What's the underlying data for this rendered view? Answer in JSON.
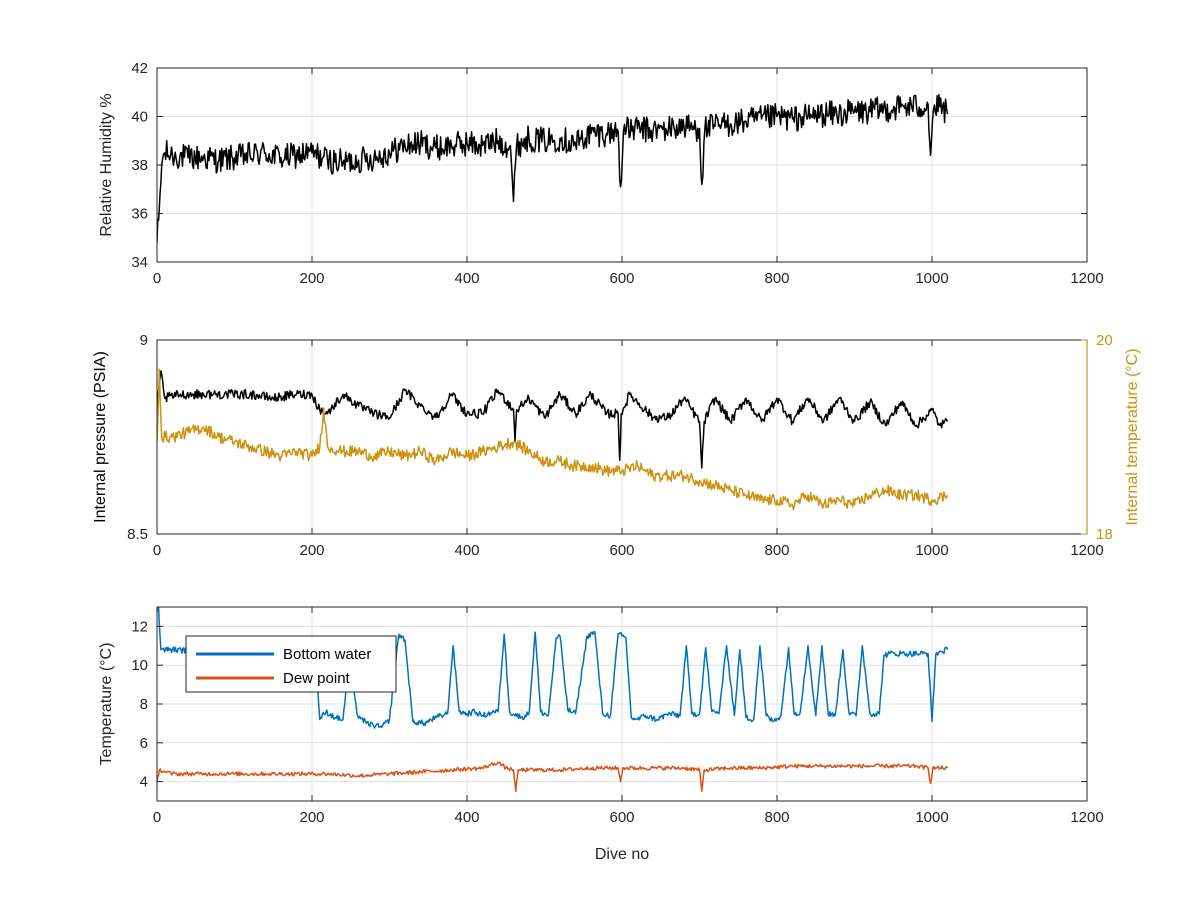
{
  "chart_data": [
    {
      "type": "line",
      "panel": "top",
      "xlabel": "",
      "ylabel": "Relative Humidity %",
      "xlim": [
        0,
        1200
      ],
      "ylim": [
        34,
        42
      ],
      "xticks": [
        0,
        200,
        400,
        600,
        800,
        1000,
        1200
      ],
      "yticks": [
        34,
        36,
        38,
        40,
        42
      ],
      "grid": true,
      "series": [
        {
          "name": "",
          "color": "#000000",
          "noise": 0.55,
          "x": [
            0,
            3,
            6,
            10,
            20,
            40,
            60,
            80,
            100,
            120,
            140,
            160,
            180,
            200,
            220,
            240,
            260,
            280,
            300,
            320,
            340,
            360,
            380,
            400,
            420,
            440,
            456,
            460,
            464,
            480,
            500,
            520,
            540,
            560,
            580,
            595,
            598,
            602,
            620,
            640,
            660,
            680,
            700,
            703,
            707,
            720,
            740,
            760,
            780,
            800,
            820,
            840,
            860,
            880,
            900,
            920,
            940,
            960,
            980,
            995,
            998,
            1002,
            1010,
            1020
          ],
          "y": [
            34.8,
            36.2,
            38.0,
            38.5,
            38.4,
            38.3,
            38.3,
            38.2,
            38.3,
            38.4,
            38.5,
            38.3,
            38.4,
            38.5,
            38.2,
            38.1,
            38.2,
            38.3,
            38.5,
            38.8,
            38.9,
            38.7,
            38.8,
            38.9,
            38.8,
            39.0,
            38.8,
            36.5,
            38.8,
            39.1,
            39.0,
            39.1,
            38.9,
            39.3,
            39.3,
            39.4,
            37.1,
            39.4,
            39.5,
            39.4,
            39.5,
            39.6,
            39.5,
            37.2,
            39.5,
            39.6,
            39.7,
            39.8,
            39.9,
            40.0,
            39.9,
            40.0,
            40.1,
            40.1,
            40.2,
            40.2,
            40.3,
            40.4,
            40.4,
            40.5,
            38.4,
            40.3,
            40.4,
            40.1
          ]
        }
      ]
    },
    {
      "type": "line",
      "panel": "middle",
      "xlabel": "",
      "ylabel": "Internal pressure (PSIA)",
      "ylabel_right": "Internal temperature (°C)",
      "xlim": [
        0,
        1200
      ],
      "ylim": [
        8.5,
        9
      ],
      "ylim_right": [
        18,
        20
      ],
      "xticks": [
        0,
        200,
        400,
        600,
        800,
        1000,
        1200
      ],
      "yticks": [
        8.5,
        9
      ],
      "yticks_right": [
        18,
        20
      ],
      "grid": true,
      "series": [
        {
          "name": "",
          "axis": "left",
          "color": "#000000",
          "noise": 0.012,
          "x": [
            0,
            5,
            10,
            30,
            60,
            90,
            120,
            150,
            180,
            200,
            210,
            220,
            240,
            260,
            280,
            300,
            320,
            340,
            360,
            380,
            400,
            420,
            440,
            460,
            462,
            464,
            480,
            500,
            520,
            540,
            560,
            580,
            595,
            597,
            599,
            610,
            640,
            660,
            680,
            700,
            703,
            706,
            720,
            740,
            760,
            780,
            800,
            820,
            840,
            860,
            880,
            900,
            920,
            940,
            960,
            980,
            1000,
            1010,
            1020
          ],
          "y": [
            8.82,
            8.92,
            8.85,
            8.86,
            8.86,
            8.86,
            8.86,
            8.85,
            8.86,
            8.86,
            8.82,
            8.81,
            8.86,
            8.83,
            8.81,
            8.8,
            8.87,
            8.83,
            8.8,
            8.86,
            8.81,
            8.81,
            8.87,
            8.82,
            8.74,
            8.82,
            8.85,
            8.8,
            8.86,
            8.81,
            8.86,
            8.81,
            8.81,
            8.69,
            8.81,
            8.86,
            8.8,
            8.8,
            8.85,
            8.79,
            8.67,
            8.79,
            8.85,
            8.79,
            8.85,
            8.79,
            8.85,
            8.79,
            8.85,
            8.79,
            8.85,
            8.79,
            8.84,
            8.78,
            8.84,
            8.78,
            8.82,
            8.78,
            8.79
          ]
        },
        {
          "name": "",
          "axis": "right",
          "color": "#cc9314",
          "noise": 0.06,
          "x": [
            0,
            3,
            6,
            20,
            40,
            60,
            80,
            100,
            120,
            140,
            160,
            180,
            200,
            210,
            215,
            220,
            240,
            260,
            280,
            300,
            320,
            340,
            360,
            380,
            400,
            420,
            440,
            460,
            480,
            500,
            520,
            540,
            560,
            580,
            600,
            620,
            640,
            660,
            680,
            700,
            720,
            740,
            760,
            780,
            800,
            820,
            840,
            860,
            880,
            900,
            920,
            940,
            960,
            980,
            1000,
            1020
          ],
          "y": [
            18.95,
            19.7,
            19.0,
            19.0,
            19.05,
            19.1,
            19.0,
            18.95,
            18.9,
            18.85,
            18.8,
            18.85,
            18.8,
            18.9,
            19.3,
            18.9,
            18.85,
            18.85,
            18.8,
            18.85,
            18.8,
            18.85,
            18.75,
            18.85,
            18.8,
            18.85,
            18.9,
            18.95,
            18.85,
            18.75,
            18.75,
            18.7,
            18.7,
            18.65,
            18.65,
            18.7,
            18.6,
            18.6,
            18.6,
            18.55,
            18.5,
            18.45,
            18.4,
            18.35,
            18.35,
            18.3,
            18.4,
            18.3,
            18.35,
            18.3,
            18.4,
            18.45,
            18.4,
            18.4,
            18.35,
            18.4
          ]
        }
      ]
    },
    {
      "type": "line",
      "panel": "bottom",
      "xlabel": "Dive no",
      "ylabel": "Temperature (°C)",
      "xlim": [
        0,
        1200
      ],
      "ylim": [
        3,
        13
      ],
      "xticks": [
        0,
        200,
        400,
        600,
        800,
        1000,
        1200
      ],
      "yticks": [
        4,
        6,
        8,
        10,
        12
      ],
      "grid": true,
      "legend": "top-left",
      "series": [
        {
          "name": "Bottom water",
          "color": "#0072bd",
          "noise": 0.15,
          "x": [
            0,
            2,
            5,
            20,
            60,
            100,
            140,
            180,
            205,
            210,
            218,
            230,
            240,
            248,
            258,
            270,
            290,
            300,
            312,
            320,
            330,
            345,
            360,
            375,
            382,
            390,
            400,
            410,
            420,
            435,
            440,
            448,
            455,
            470,
            480,
            488,
            495,
            505,
            515,
            520,
            530,
            540,
            555,
            565,
            575,
            585,
            595,
            605,
            612,
            620,
            630,
            645,
            660,
            675,
            683,
            690,
            700,
            708,
            716,
            725,
            735,
            745,
            752,
            760,
            770,
            778,
            786,
            795,
            805,
            815,
            822,
            830,
            840,
            850,
            858,
            866,
            875,
            885,
            893,
            902,
            910,
            920,
            932,
            938,
            945,
            960,
            980,
            995,
            1000,
            1005,
            1012,
            1020
          ],
          "y": [
            12.8,
            13.0,
            10.8,
            10.8,
            10.7,
            10.6,
            10.6,
            10.5,
            10.4,
            7.2,
            7.6,
            7.3,
            7.2,
            10.3,
            7.5,
            7.0,
            6.8,
            7.2,
            11.6,
            11.3,
            7.1,
            7.0,
            7.3,
            7.5,
            11.0,
            7.6,
            7.5,
            7.6,
            7.4,
            7.6,
            7.6,
            11.6,
            7.6,
            7.3,
            7.5,
            11.7,
            7.6,
            7.4,
            11.4,
            11.5,
            7.7,
            7.5,
            11.5,
            11.7,
            7.5,
            7.4,
            11.6,
            11.4,
            7.3,
            7.2,
            7.4,
            7.2,
            7.5,
            7.4,
            11.0,
            7.5,
            7.5,
            10.9,
            7.6,
            7.5,
            11.0,
            7.4,
            10.8,
            7.3,
            7.2,
            11.0,
            7.4,
            7.1,
            7.4,
            10.9,
            7.5,
            7.6,
            11.0,
            7.4,
            11.0,
            7.5,
            7.4,
            10.8,
            7.5,
            7.4,
            11.0,
            7.5,
            7.5,
            10.5,
            10.6,
            10.6,
            10.6,
            10.6,
            7.1,
            10.6,
            10.7,
            10.8
          ]
        },
        {
          "name": "Dew point",
          "color": "#d95319",
          "noise": 0.1,
          "x": [
            0,
            3,
            20,
            60,
            100,
            140,
            180,
            220,
            260,
            300,
            340,
            380,
            420,
            440,
            450,
            460,
            463,
            466,
            480,
            520,
            560,
            595,
            598,
            601,
            640,
            680,
            700,
            703,
            706,
            740,
            780,
            820,
            860,
            900,
            940,
            980,
            995,
            998,
            1001,
            1020
          ],
          "y": [
            4.0,
            4.6,
            4.4,
            4.4,
            4.4,
            4.4,
            4.4,
            4.4,
            4.3,
            4.4,
            4.5,
            4.6,
            4.7,
            5.0,
            4.7,
            4.6,
            3.5,
            4.6,
            4.6,
            4.6,
            4.7,
            4.7,
            4.0,
            4.7,
            4.7,
            4.7,
            4.6,
            3.5,
            4.6,
            4.7,
            4.7,
            4.8,
            4.8,
            4.8,
            4.8,
            4.8,
            4.7,
            3.9,
            4.7,
            4.7
          ]
        }
      ]
    }
  ]
}
